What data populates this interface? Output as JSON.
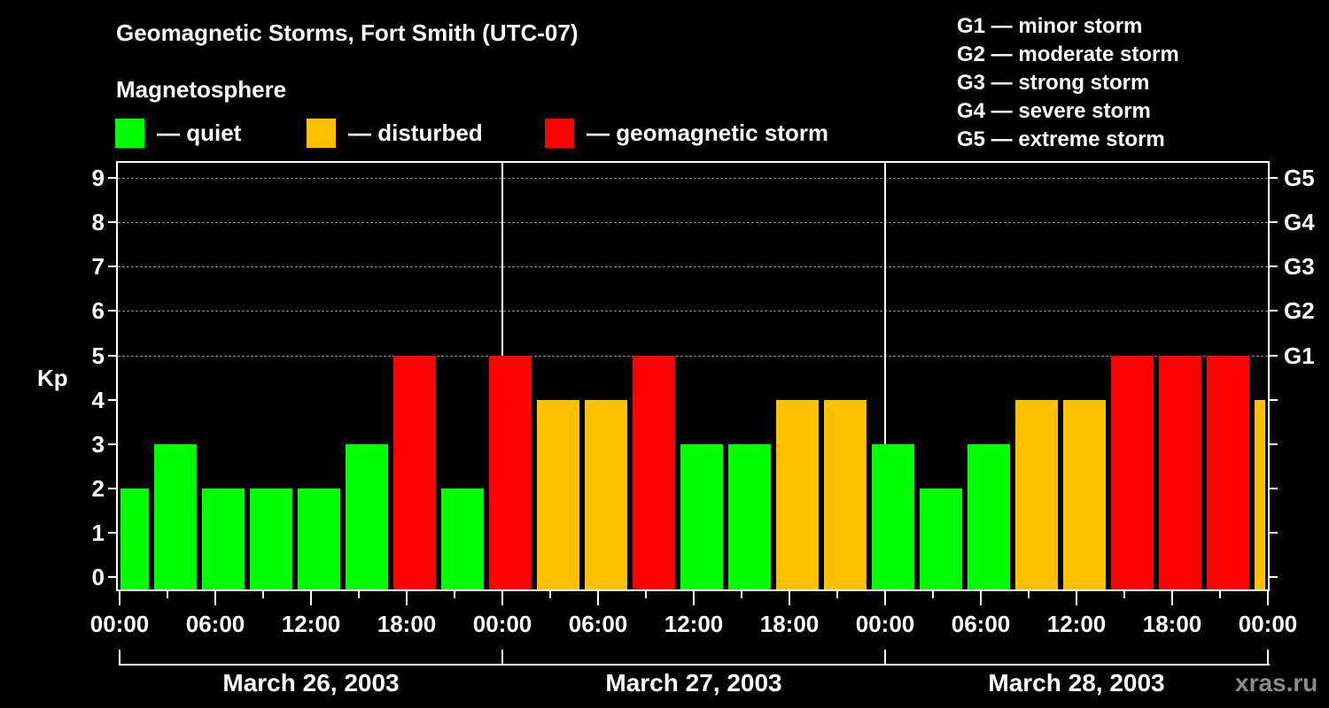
{
  "title": "Geomagnetic Storms, Fort Smith (UTC-07)",
  "subtitle": "Magnetosphere",
  "legend": [
    {
      "label": "— quiet",
      "color": "#00ff00"
    },
    {
      "label": "— disturbed",
      "color": "#ffc000"
    },
    {
      "label": "— geomagnetic storm",
      "color": "#ff0000"
    }
  ],
  "g_scale_legend": [
    "G1 — minor storm",
    "G2 — moderate storm",
    "G3 — strong storm",
    "G4 — severe storm",
    "G5 — extreme storm"
  ],
  "y_axis_label": "Kp",
  "y_ticks": [
    "0",
    "1",
    "2",
    "3",
    "4",
    "5",
    "6",
    "7",
    "8",
    "9"
  ],
  "g_ticks": {
    "5": "G1",
    "6": "G2",
    "7": "G3",
    "8": "G4",
    "9": "G5"
  },
  "x_tick_labels": [
    "00:00",
    "06:00",
    "12:00",
    "18:00",
    "00:00",
    "06:00",
    "12:00",
    "18:00",
    "00:00",
    "06:00",
    "12:00",
    "18:00",
    "00:00"
  ],
  "day_labels": [
    "March 26, 2003",
    "March 27, 2003",
    "March 28, 2003"
  ],
  "watermark": "xras.ru",
  "colors": {
    "quiet": "#00ff00",
    "disturbed": "#ffc000",
    "storm": "#ff0000",
    "grid": "#8a8a8a",
    "background": "#000000"
  },
  "chart_data": {
    "type": "bar",
    "title": "Geomagnetic Storms, Fort Smith (UTC-07)",
    "xlabel": "",
    "ylabel": "Kp",
    "ylim": [
      0,
      9
    ],
    "grid": "dashed horizontal at Kp 5-9",
    "legend_position": "top",
    "categories": [
      "Mar 26 00:00",
      "Mar 26 03:00",
      "Mar 26 06:00",
      "Mar 26 09:00",
      "Mar 26 12:00",
      "Mar 26 15:00",
      "Mar 26 18:00",
      "Mar 26 21:00",
      "Mar 27 00:00",
      "Mar 27 03:00",
      "Mar 27 06:00",
      "Mar 27 09:00",
      "Mar 27 12:00",
      "Mar 27 15:00",
      "Mar 27 18:00",
      "Mar 27 21:00",
      "Mar 28 00:00",
      "Mar 28 03:00",
      "Mar 28 06:00",
      "Mar 28 09:00",
      "Mar 28 12:00",
      "Mar 28 15:00",
      "Mar 28 18:00",
      "Mar 28 21:00",
      "Mar 29 00:00"
    ],
    "values": [
      2,
      3,
      2,
      2,
      2,
      3,
      5,
      2,
      5,
      4,
      4,
      5,
      3,
      3,
      4,
      4,
      3,
      2,
      3,
      4,
      4,
      5,
      5,
      5,
      4
    ],
    "color_rule": {
      "quiet": "Kp <= 3",
      "disturbed": "Kp = 4",
      "storm": "Kp >= 5"
    },
    "secondary_axis": {
      "5": "G1",
      "6": "G2",
      "7": "G3",
      "8": "G4",
      "9": "G5"
    }
  }
}
